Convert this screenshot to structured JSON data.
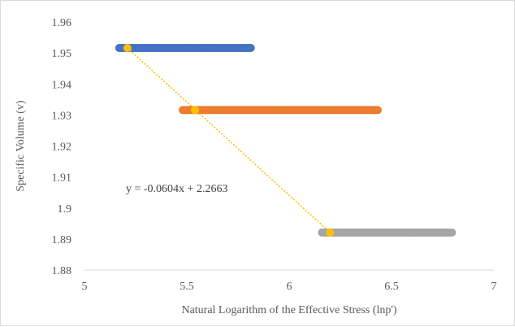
{
  "chart_data": {
    "type": "scatter",
    "xlabel": "Natural Logarithm of the Effective Stress (lnp')",
    "ylabel": "Specific Volume (v)",
    "xlim": [
      5,
      7
    ],
    "ylim": [
      1.88,
      1.96
    ],
    "x_ticks": [
      "5",
      "5.5",
      "6",
      "6.5",
      "7"
    ],
    "y_ticks": [
      "1.88",
      "1.89",
      "1.9",
      "1.91",
      "1.92",
      "1.93",
      "1.94",
      "1.95",
      "1.96"
    ],
    "grid": false,
    "series": [
      {
        "color": "#4472c4",
        "y": 1.9516,
        "x_start": 5.17,
        "x_end": 5.82
      },
      {
        "color": "#ed7d31",
        "y": 1.9316,
        "x_start": 5.48,
        "x_end": 6.44
      },
      {
        "color": "#a5a5a5",
        "y": 1.8921,
        "x_start": 6.16,
        "x_end": 6.8
      },
      {
        "color": "#ffc000",
        "x": [
          5.21,
          5.54,
          6.2
        ],
        "y": [
          1.9516,
          1.9316,
          1.8921
        ]
      }
    ],
    "trendline": {
      "color": "#ffc000",
      "style": "dotted",
      "x": [
        5.21,
        6.2
      ],
      "equation": "y = -0.0604x + 2.2663"
    }
  }
}
